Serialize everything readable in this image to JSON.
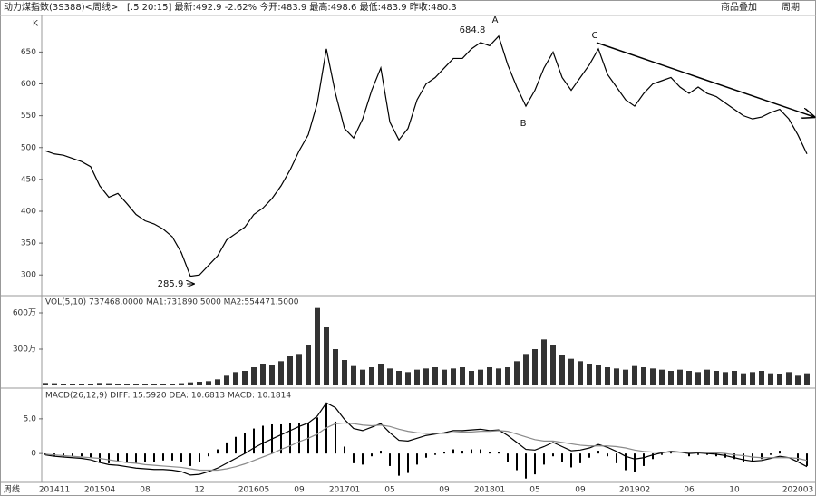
{
  "header": {
    "title": "动力煤指数(3S388)<周线>",
    "quote": "[.5 20:15] 最新:492.9 -2.62% 今开:483.9 最高:498.6 最低:483.9 昨收:480.3",
    "overlay": "商品叠加",
    "period": "周期",
    "axis_corner": "K",
    "period_label": "周线"
  },
  "chart_data": [
    {
      "type": "line",
      "color": "#000000",
      "categories": [
        null,
        "201411",
        null,
        null,
        null,
        null,
        "201504",
        null,
        null,
        null,
        null,
        "08",
        null,
        null,
        null,
        null,
        null,
        "12",
        null,
        null,
        null,
        null,
        null,
        "201605",
        null,
        null,
        null,
        null,
        "09",
        null,
        null,
        null,
        null,
        "201701",
        null,
        null,
        null,
        null,
        "05",
        null,
        null,
        null,
        null,
        null,
        "09",
        null,
        null,
        null,
        null,
        "201801",
        null,
        null,
        null,
        null,
        "05",
        null,
        null,
        null,
        null,
        "09",
        null,
        null,
        null,
        null,
        null,
        "201902",
        null,
        null,
        null,
        null,
        null,
        "06",
        null,
        null,
        null,
        null,
        "10",
        null,
        null,
        null,
        null,
        null,
        null,
        "202003",
        null
      ],
      "values": [
        495,
        490,
        488,
        483,
        478,
        470,
        440,
        422,
        428,
        412,
        395,
        385,
        380,
        372,
        360,
        335,
        298,
        300,
        315,
        330,
        355,
        365,
        375,
        395,
        405,
        420,
        440,
        465,
        495,
        520,
        570,
        655,
        585,
        530,
        515,
        545,
        590,
        625,
        540,
        512,
        530,
        575,
        600,
        610,
        625,
        640,
        640,
        655,
        665,
        660,
        675,
        630,
        595,
        565,
        590,
        625,
        650,
        610,
        590,
        610,
        630,
        655,
        615,
        595,
        575,
        565,
        585,
        600,
        605,
        610,
        595,
        585,
        595,
        585,
        580,
        570,
        560,
        550,
        545,
        548,
        555,
        560,
        545,
        520,
        490
      ],
      "ylim": [
        269,
        689
      ],
      "yticks": [
        300,
        350,
        400,
        450,
        500,
        550,
        600,
        650
      ],
      "annotations": [
        "684.8",
        "A",
        "B",
        "C",
        "285.9"
      ]
    },
    {
      "type": "bar",
      "title": "VOL(5,10) 737468.0000 MA1:731890.5000 MA2:554471.5000",
      "color": "#333333",
      "values": [
        20,
        18,
        15,
        15,
        12,
        15,
        20,
        18,
        15,
        12,
        12,
        10,
        10,
        12,
        15,
        18,
        25,
        30,
        35,
        50,
        80,
        110,
        120,
        150,
        180,
        170,
        200,
        240,
        260,
        330,
        640,
        480,
        300,
        210,
        160,
        130,
        150,
        180,
        140,
        120,
        110,
        130,
        140,
        150,
        130,
        140,
        150,
        120,
        130,
        150,
        140,
        150,
        200,
        260,
        300,
        380,
        330,
        250,
        220,
        200,
        180,
        170,
        150,
        140,
        130,
        160,
        150,
        140,
        130,
        120,
        130,
        120,
        110,
        130,
        120,
        110,
        120,
        100,
        110,
        120,
        100,
        90,
        110,
        80,
        100
      ],
      "ylim": [
        0,
        720
      ],
      "yticks": [
        {
          "value": 300,
          "label": "300万"
        },
        {
          "value": 600,
          "label": "600万"
        }
      ]
    },
    {
      "type": "macd",
      "title": "MACD(26,12,9) DIFF: 15.5920 DEA: 10.6813 MACD: 10.1814",
      "series": [
        {
          "color": "#000000",
          "values": [
            -0.2,
            -0.4,
            -0.5,
            -0.6,
            -0.7,
            -0.9,
            -1.3,
            -1.6,
            -1.7,
            -1.9,
            -2.1,
            -2.2,
            -2.3,
            -2.3,
            -2.4,
            -2.6,
            -3.1,
            -3.0,
            -2.6,
            -2.1,
            -1.4,
            -0.7,
            0,
            0.8,
            1.5,
            2.1,
            2.7,
            3.3,
            3.9,
            4.4,
            5.4,
            7.3,
            6.6,
            4.9,
            3.6,
            3.3,
            3.8,
            4.3,
            3.0,
            1.9,
            1.8,
            2.2,
            2.6,
            2.8,
            3.0,
            3.3,
            3.3,
            3.4,
            3.5,
            3.3,
            3.4,
            2.6,
            1.6,
            0.6,
            0.5,
            1.0,
            1.6,
            1.0,
            0.4,
            0.5,
            0.8,
            1.3,
            0.9,
            0.3,
            -0.4,
            -0.8,
            -0.6,
            -0.2,
            0.1,
            0.3,
            0.2,
            0,
            0.1,
            0,
            -0.1,
            -0.3,
            -0.6,
            -0.9,
            -1.1,
            -1.0,
            -0.7,
            -0.4,
            -0.6,
            -1.2,
            -1.9
          ]
        },
        {
          "color": "#8a8a8a",
          "values": [
            -0.1,
            -0.2,
            -0.3,
            -0.4,
            -0.5,
            -0.6,
            -0.7,
            -0.9,
            -1.1,
            -1.3,
            -1.4,
            -1.6,
            -1.7,
            -1.8,
            -1.9,
            -2.0,
            -2.2,
            -2.4,
            -2.4,
            -2.4,
            -2.2,
            -1.9,
            -1.5,
            -1.0,
            -0.5,
            0,
            0.6,
            1.1,
            1.7,
            2.2,
            2.8,
            3.7,
            4.3,
            4.4,
            4.3,
            4.1,
            4.0,
            4.1,
            3.9,
            3.5,
            3.2,
            3.0,
            2.9,
            2.9,
            2.9,
            3.0,
            3.1,
            3.1,
            3.2,
            3.2,
            3.3,
            3.2,
            2.8,
            2.4,
            2.0,
            1.8,
            1.8,
            1.6,
            1.4,
            1.2,
            1.1,
            1.1,
            1.1,
            1.0,
            0.8,
            0.5,
            0.3,
            0.2,
            0.2,
            0.2,
            0.2,
            0.2,
            0.2,
            0.1,
            0.1,
            0,
            -0.2,
            -0.3,
            -0.5,
            -0.6,
            -0.6,
            -0.6,
            -0.6,
            -0.7,
            -1.0
          ]
        }
      ],
      "bars": {
        "color": "#000000",
        "values": [
          -0.2,
          -0.4,
          -0.4,
          -0.4,
          -0.4,
          -0.6,
          -1.2,
          -1.4,
          -1.2,
          -1.2,
          -1.4,
          -1.2,
          -1.2,
          -1.0,
          -1.0,
          -1.2,
          -1.8,
          -1.2,
          -0.4,
          0.6,
          1.6,
          2.4,
          3.0,
          3.6,
          4.0,
          4.2,
          4.2,
          4.4,
          4.4,
          4.4,
          5.2,
          7.2,
          4.6,
          1.0,
          -1.4,
          -1.6,
          -0.4,
          0.4,
          -1.8,
          -3.2,
          -2.8,
          -1.6,
          -0.6,
          -0.2,
          0.2,
          0.6,
          0.4,
          0.6,
          0.6,
          0.2,
          0.2,
          -1.2,
          -2.4,
          -3.6,
          -3.0,
          -1.6,
          -0.4,
          -1.2,
          -2.0,
          -1.4,
          -0.6,
          0.4,
          -0.4,
          -1.4,
          -2.4,
          -2.6,
          -1.8,
          -0.8,
          -0.2,
          0.2,
          0,
          -0.4,
          -0.2,
          -0.2,
          -0.4,
          -0.6,
          -0.8,
          -1.2,
          -1.2,
          -0.8,
          -0.2,
          0.4,
          0,
          -1.0,
          -1.8
        ]
      },
      "ylim": [
        -3.9,
        8.9
      ],
      "yticks": [
        0,
        {
          "value": 5,
          "label": "5.0"
        }
      ]
    }
  ]
}
